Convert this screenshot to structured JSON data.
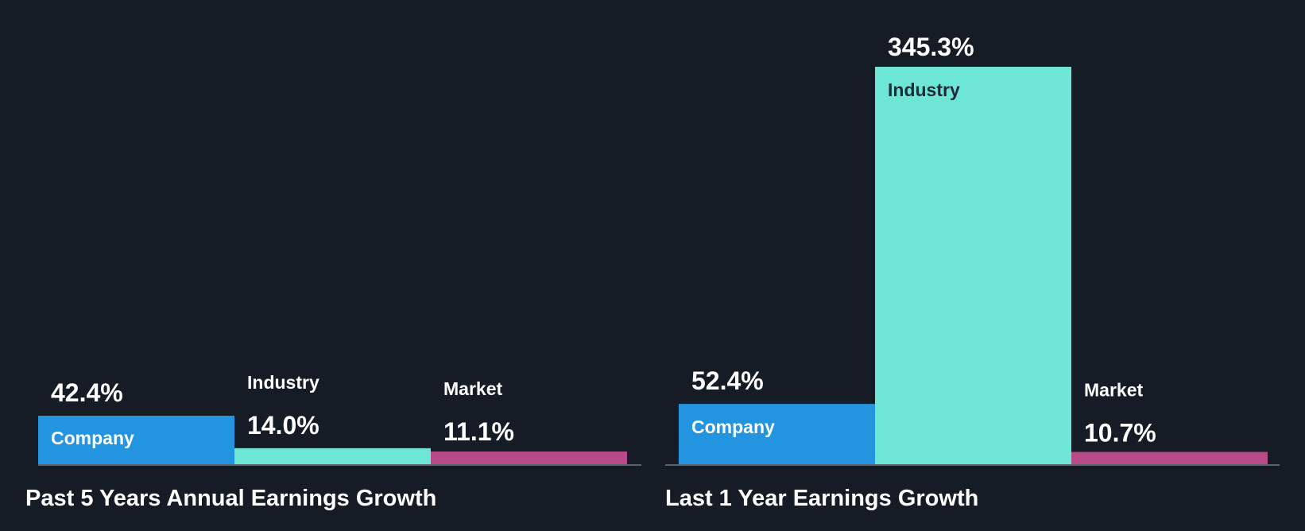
{
  "colors": {
    "background": "#161c25",
    "company": "#2394e0",
    "industry": "#6ee6d5",
    "market": "#b84b87",
    "baseline": "#6b7280",
    "text": "#ffffff",
    "text_on_light": "#1f2937"
  },
  "chart_data": [
    {
      "type": "bar",
      "title": "Past 5 Years Annual Earnings Growth",
      "categories": [
        "Company",
        "Industry",
        "Market"
      ],
      "values": [
        42.4,
        14.0,
        11.1
      ],
      "value_labels": [
        "42.4%",
        "14.0%",
        "11.1%"
      ],
      "unit": "%",
      "ylim": [
        0,
        100
      ]
    },
    {
      "type": "bar",
      "title": "Last 1 Year Earnings Growth",
      "categories": [
        "Company",
        "Industry",
        "Market"
      ],
      "values": [
        52.4,
        345.3,
        10.7
      ],
      "value_labels": [
        "52.4%",
        "345.3%",
        "10.7%"
      ],
      "unit": "%",
      "ylim": [
        0,
        345.3
      ]
    }
  ]
}
